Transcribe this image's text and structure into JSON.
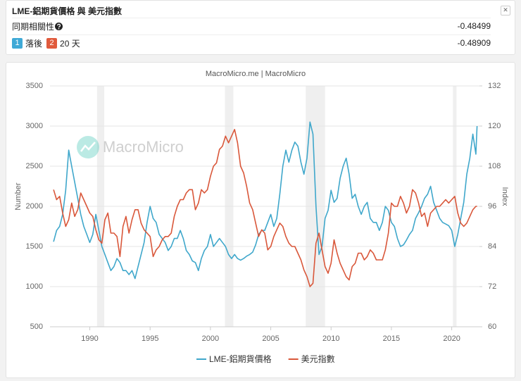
{
  "panel": {
    "title": "LME-鋁期貨價格 與 美元指數",
    "rows": [
      {
        "label": "同期相關性",
        "value": -0.48499
      },
      {
        "badge1": "1",
        "lag_label": "落後",
        "badge2": "2",
        "lag": "20 天",
        "value": -0.48909
      }
    ]
  },
  "chart_data": {
    "type": "line",
    "title": "MacroMicro.me | MacroMicro",
    "watermark": "MacroMicro",
    "y_label": "Number",
    "y2_label": "Index",
    "xlim": [
      1986.7,
      2022.3
    ],
    "xticks": [
      1990,
      1995,
      2000,
      2005,
      2010,
      2015,
      2020
    ],
    "ylim": [
      500,
      3500
    ],
    "yticks": [
      500,
      1000,
      1500,
      2000,
      2500,
      3000,
      3500
    ],
    "y2lim": [
      60,
      132
    ],
    "y2ticks": [
      60,
      72,
      84,
      96,
      108,
      120,
      132
    ],
    "grid": true,
    "shaded_ranges": [
      [
        1990.6,
        1991.2
      ],
      [
        2001.2,
        2001.9
      ],
      [
        2007.9,
        2009.5
      ],
      [
        2020.1,
        2020.4
      ]
    ],
    "x": [
      1987,
      1987.25,
      1987.5,
      1987.75,
      1988,
      1988.25,
      1988.5,
      1988.75,
      1989,
      1989.25,
      1989.5,
      1989.75,
      1990,
      1990.25,
      1990.5,
      1990.75,
      1991,
      1991.25,
      1991.5,
      1991.75,
      1992,
      1992.25,
      1992.5,
      1992.75,
      1993,
      1993.25,
      1993.5,
      1993.75,
      1994,
      1994.25,
      1994.5,
      1994.75,
      1995,
      1995.25,
      1995.5,
      1995.75,
      1996,
      1996.25,
      1996.5,
      1996.75,
      1997,
      1997.25,
      1997.5,
      1997.75,
      1998,
      1998.25,
      1998.5,
      1998.75,
      1999,
      1999.25,
      1999.5,
      1999.75,
      2000,
      2000.25,
      2000.5,
      2000.75,
      2001,
      2001.25,
      2001.5,
      2001.75,
      2002,
      2002.25,
      2002.5,
      2002.75,
      2003,
      2003.25,
      2003.5,
      2003.75,
      2004,
      2004.25,
      2004.5,
      2004.75,
      2005,
      2005.25,
      2005.5,
      2005.75,
      2006,
      2006.25,
      2006.5,
      2006.75,
      2007,
      2007.25,
      2007.5,
      2007.75,
      2008,
      2008.25,
      2008.5,
      2008.75,
      2009,
      2009.25,
      2009.5,
      2009.75,
      2010,
      2010.25,
      2010.5,
      2010.75,
      2011,
      2011.25,
      2011.5,
      2011.75,
      2012,
      2012.25,
      2012.5,
      2012.75,
      2013,
      2013.25,
      2013.5,
      2013.75,
      2014,
      2014.25,
      2014.5,
      2014.75,
      2015,
      2015.25,
      2015.5,
      2015.75,
      2016,
      2016.25,
      2016.5,
      2016.75,
      2017,
      2017.25,
      2017.5,
      2017.75,
      2018,
      2018.25,
      2018.5,
      2018.75,
      2019,
      2019.25,
      2019.5,
      2019.75,
      2020,
      2020.25,
      2020.5,
      2020.75,
      2021,
      2021.25,
      2021.5,
      2021.75,
      2022,
      2022.1
    ],
    "series": [
      {
        "name": "LME-鋁期貨價格",
        "color": "#3fa7cb",
        "values": [
          1560,
          1700,
          1750,
          1900,
          2200,
          2700,
          2500,
          2300,
          2100,
          1900,
          1750,
          1650,
          1550,
          1650,
          1900,
          1700,
          1500,
          1400,
          1300,
          1200,
          1250,
          1350,
          1300,
          1200,
          1200,
          1150,
          1200,
          1100,
          1250,
          1400,
          1550,
          1800,
          2000,
          1850,
          1800,
          1650,
          1600,
          1550,
          1450,
          1500,
          1600,
          1600,
          1700,
          1600,
          1450,
          1400,
          1320,
          1300,
          1200,
          1350,
          1450,
          1500,
          1650,
          1500,
          1550,
          1600,
          1550,
          1500,
          1400,
          1350,
          1400,
          1350,
          1330,
          1350,
          1380,
          1400,
          1430,
          1520,
          1650,
          1700,
          1700,
          1800,
          1900,
          1750,
          1850,
          2150,
          2500,
          2700,
          2550,
          2700,
          2800,
          2750,
          2550,
          2400,
          2600,
          3050,
          2900,
          2000,
          1400,
          1500,
          1850,
          1950,
          2200,
          2050,
          2100,
          2350,
          2500,
          2600,
          2400,
          2100,
          2150,
          2000,
          1900,
          2000,
          2050,
          1850,
          1800,
          1800,
          1700,
          1800,
          2000,
          1950,
          1800,
          1750,
          1600,
          1500,
          1520,
          1580,
          1650,
          1700,
          1850,
          1920,
          2000,
          2100,
          2150,
          2250,
          2050,
          1950,
          1850,
          1800,
          1780,
          1760,
          1700,
          1500,
          1650,
          1850,
          2050,
          2400,
          2600,
          2900,
          2650,
          3000
        ]
      },
      {
        "name": "美元指數",
        "color": "#d9573a",
        "axis": "y2",
        "values": [
          101,
          98,
          99,
          94,
          90,
          92,
          97,
          93,
          95,
          100,
          98,
          96,
          94,
          93,
          89,
          86,
          85,
          92,
          94,
          88,
          88,
          87,
          81,
          90,
          93,
          88,
          92,
          95,
          95,
          91,
          89,
          88,
          87,
          81,
          83,
          84,
          86,
          87,
          87,
          88,
          93,
          96,
          98,
          98,
          100,
          101,
          101,
          95,
          97,
          101,
          100,
          101,
          105,
          108,
          109,
          113,
          114,
          117,
          115,
          117,
          119,
          115,
          108,
          106,
          102,
          97,
          95,
          91,
          87,
          89,
          88,
          83,
          84,
          87,
          89,
          91,
          90,
          87,
          85,
          84,
          84,
          82,
          80,
          77,
          75,
          72,
          73,
          85,
          88,
          83,
          78,
          76,
          79,
          86,
          82,
          79,
          77,
          75,
          74,
          78,
          79,
          82,
          82,
          80,
          81,
          83,
          82,
          80,
          80,
          80,
          83,
          88,
          97,
          96,
          96,
          99,
          97,
          94,
          96,
          101,
          100,
          97,
          93,
          94,
          90,
          94,
          95,
          96,
          96,
          97,
          98,
          97,
          98,
          99,
          94,
          91,
          90,
          91,
          93,
          95,
          96,
          96
        ]
      }
    ]
  }
}
